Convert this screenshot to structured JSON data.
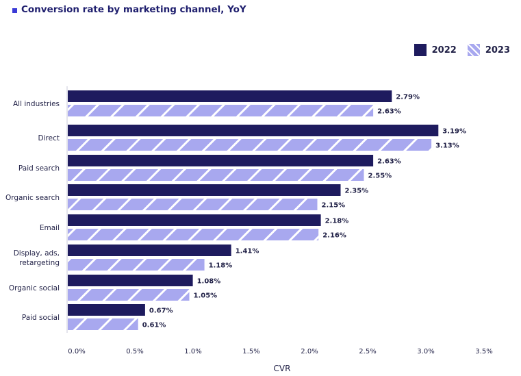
{
  "title": "Conversion rate by marketing channel, YoY",
  "colors": {
    "title_marker": "#3b3bd6",
    "series_2022": "#1e1b5e",
    "series_2023": "#a8a8ef",
    "hatch": "#ffffff",
    "axis": "#1f1f45"
  },
  "chart_data": {
    "type": "bar",
    "orientation": "horizontal",
    "title": "Conversion rate by marketing channel, YoY",
    "xlabel": "CVR",
    "ylabel": "",
    "xlim": [
      0,
      3.5
    ],
    "x_ticks": [
      "0.0%",
      "0.5%",
      "1.0%",
      "1.5%",
      "2.0%",
      "2.5%",
      "3.0%",
      "3.5%"
    ],
    "grid": false,
    "legend_position": "top-right",
    "categories": [
      [
        "All industries"
      ],
      [
        "Direct"
      ],
      [
        "Paid search"
      ],
      [
        "Organic search"
      ],
      [
        "Email"
      ],
      [
        "Display, ads,",
        "retargeting"
      ],
      [
        "Organic social"
      ],
      [
        "Paid social"
      ]
    ],
    "series": [
      {
        "name": "2022",
        "values": [
          2.79,
          3.19,
          2.63,
          2.35,
          2.18,
          1.41,
          1.08,
          0.67
        ],
        "labels": [
          "2.79%",
          "3.19%",
          "2.63%",
          "2.35%",
          "2.18%",
          "1.41%",
          "1.08%",
          "0.67%"
        ]
      },
      {
        "name": "2023",
        "values": [
          2.63,
          3.13,
          2.55,
          2.15,
          2.16,
          1.18,
          1.05,
          0.61
        ],
        "labels": [
          "2.63%",
          "3.13%",
          "2.55%",
          "2.15%",
          "2.16%",
          "1.18%",
          "1.05%",
          "0.61%"
        ]
      }
    ]
  }
}
